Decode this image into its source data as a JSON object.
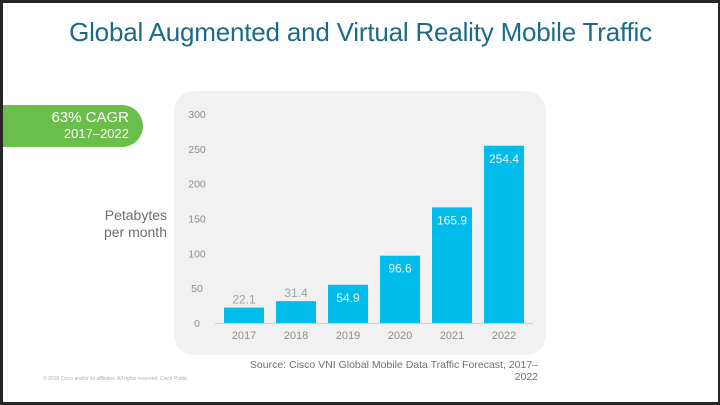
{
  "title": "Global Augmented and Virtual Reality Mobile Traffic",
  "badge": {
    "line1": "63% CAGR",
    "line2": "2017–2022",
    "color": "#6abf4b"
  },
  "source": "Source: Cisco VNI Global Mobile Data Traffic Forecast, 2017–2022",
  "footer": "© 2018  Cisco and/or its affiliates. All rights reserved.   Cisco Public",
  "chart_data": {
    "type": "bar",
    "title": "Global Augmented and Virtual Reality Mobile Traffic",
    "xlabel": "",
    "ylabel": "Petabytes per month",
    "ylabel_lines": [
      "Petabytes",
      "per month"
    ],
    "categories": [
      "2017",
      "2018",
      "2019",
      "2020",
      "2021",
      "2022"
    ],
    "values": [
      22.1,
      31.4,
      54.9,
      96.6,
      165.9,
      254.4
    ],
    "value_labels": [
      "22.1",
      "31.4",
      "54.9",
      "96.6",
      "165.9",
      "254.4"
    ],
    "ylim": [
      0,
      300
    ],
    "yticks": [
      0,
      50,
      100,
      150,
      200,
      250,
      300
    ],
    "grid": false,
    "legend": "none",
    "bar_color": "#00bceb"
  }
}
